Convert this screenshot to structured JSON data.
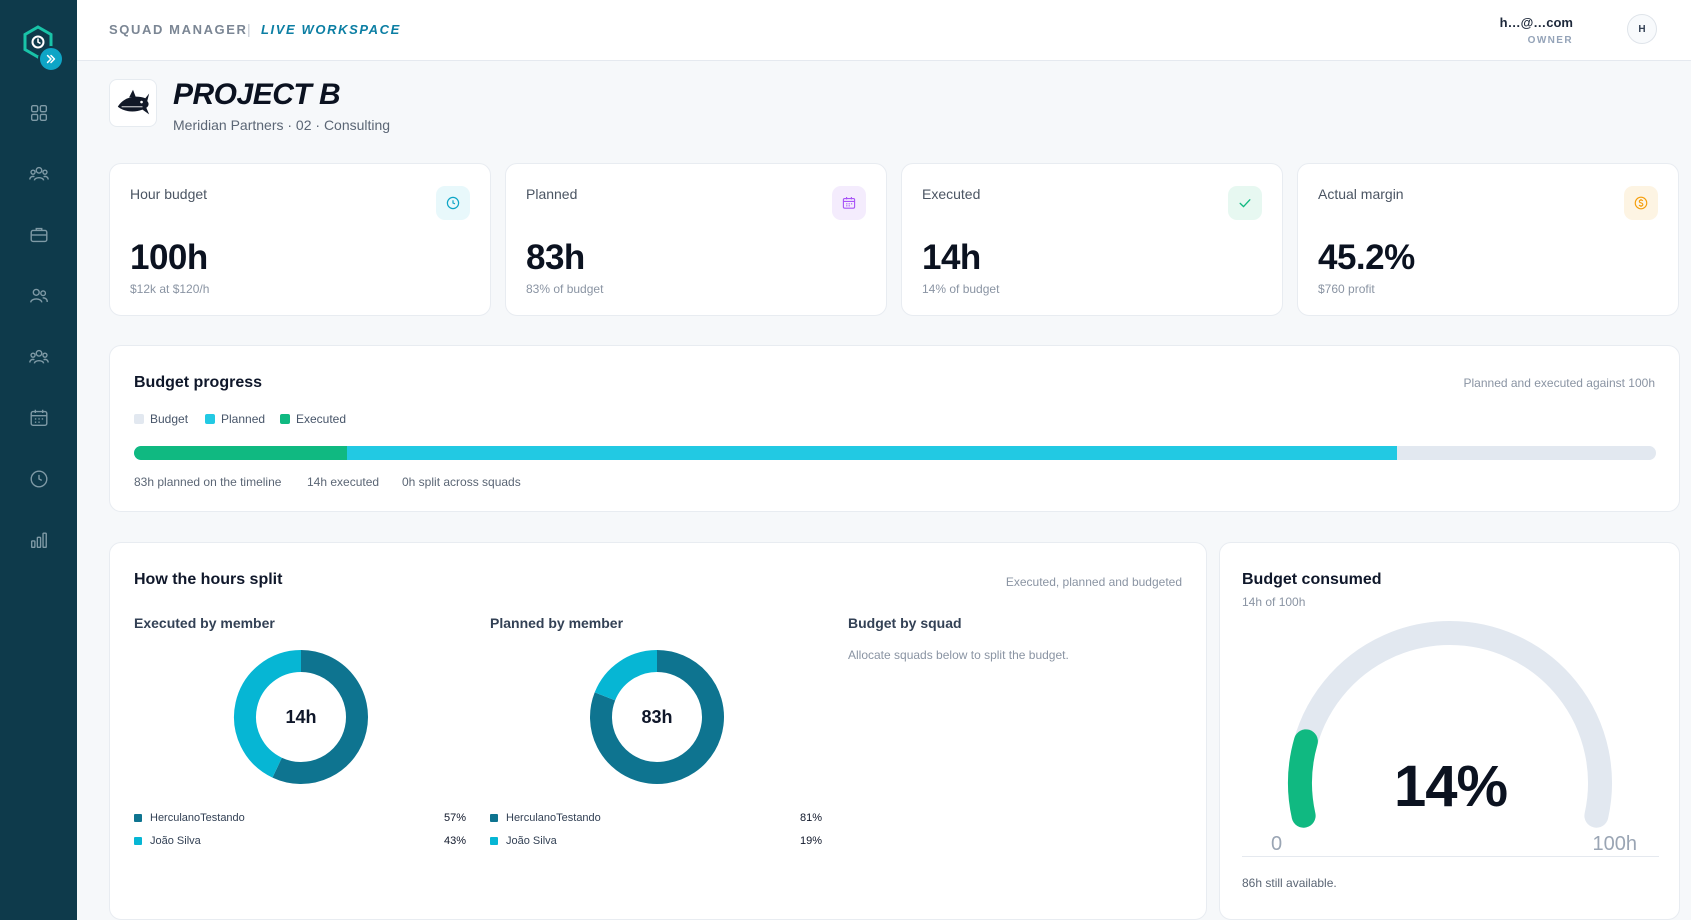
{
  "topbar": {
    "brand": "SQUAD MANAGER",
    "separator": "|",
    "workspace": "LIVE WORKSPACE",
    "user_email": "h…@…com",
    "user_role": "OWNER",
    "avatar_initial": "H"
  },
  "sidebar": {
    "items": [
      {
        "icon": "dashboard-grid-icon"
      },
      {
        "icon": "squads-icon"
      },
      {
        "icon": "briefcase-icon"
      },
      {
        "icon": "members-icon"
      },
      {
        "icon": "teams-icon"
      },
      {
        "icon": "calendar-icon"
      },
      {
        "icon": "clock-icon"
      },
      {
        "icon": "bar-chart-icon"
      }
    ]
  },
  "project": {
    "title": "PROJECT B",
    "subtitle": "Meridian Partners · 02 · Consulting"
  },
  "kpis": [
    {
      "label": "Hour budget",
      "value": "100h",
      "note": "$12k at $120/h",
      "icon": "clock-icon",
      "color": "#0ea5c6",
      "bg": "#e8f8fb"
    },
    {
      "label": "Planned",
      "value": "83h",
      "note": "83% of budget",
      "icon": "calendar-icon",
      "color": "#a855f7",
      "bg": "#f4ecfd"
    },
    {
      "label": "Executed",
      "value": "14h",
      "note": "14% of budget",
      "icon": "check-icon",
      "color": "#10b981",
      "bg": "#e7f8f1"
    },
    {
      "label": "Actual margin",
      "value": "45.2%",
      "note": "$760 profit",
      "icon": "dollar-icon",
      "color": "#f59e0b",
      "bg": "#fdf4e3"
    }
  ],
  "progress": {
    "title": "Budget progress",
    "subtitle": "Planned and executed against 100h",
    "legend": [
      {
        "label": "Budget",
        "color": "#e2e8f0"
      },
      {
        "label": "Planned",
        "color": "#22c9e3"
      },
      {
        "label": "Executed",
        "color": "#10b981"
      }
    ],
    "budget_hours": 100,
    "planned_hours": 83,
    "executed_hours": 14,
    "stats": [
      "83h planned on the timeline",
      "14h executed",
      "0h split across squads"
    ]
  },
  "split": {
    "title": "How the hours split",
    "subtitle": "Executed, planned and budgeted",
    "executed": {
      "title": "Executed by member",
      "center": "14h",
      "members": [
        {
          "name": "HerculanoTestando",
          "pct": "57%",
          "value": 57,
          "color": "#0e7490"
        },
        {
          "name": "João Silva",
          "pct": "43%",
          "value": 43,
          "color": "#06b6d4"
        }
      ]
    },
    "planned": {
      "title": "Planned by member",
      "center": "83h",
      "members": [
        {
          "name": "HerculanoTestando",
          "pct": "81%",
          "value": 81,
          "color": "#0e7490"
        },
        {
          "name": "João Silva",
          "pct": "19%",
          "value": 19,
          "color": "#06b6d4"
        }
      ]
    },
    "squad": {
      "title": "Budget by squad",
      "note": "Allocate squads below to split the budget."
    }
  },
  "gauge": {
    "title": "Budget consumed",
    "subtitle": "14h of 100h",
    "percent_text": "14%",
    "percent": 14,
    "min_label": "0",
    "max_label": "100h",
    "footer": "86h still available.",
    "track_color": "#e2e8f0",
    "fill_color": "#10b981"
  }
}
